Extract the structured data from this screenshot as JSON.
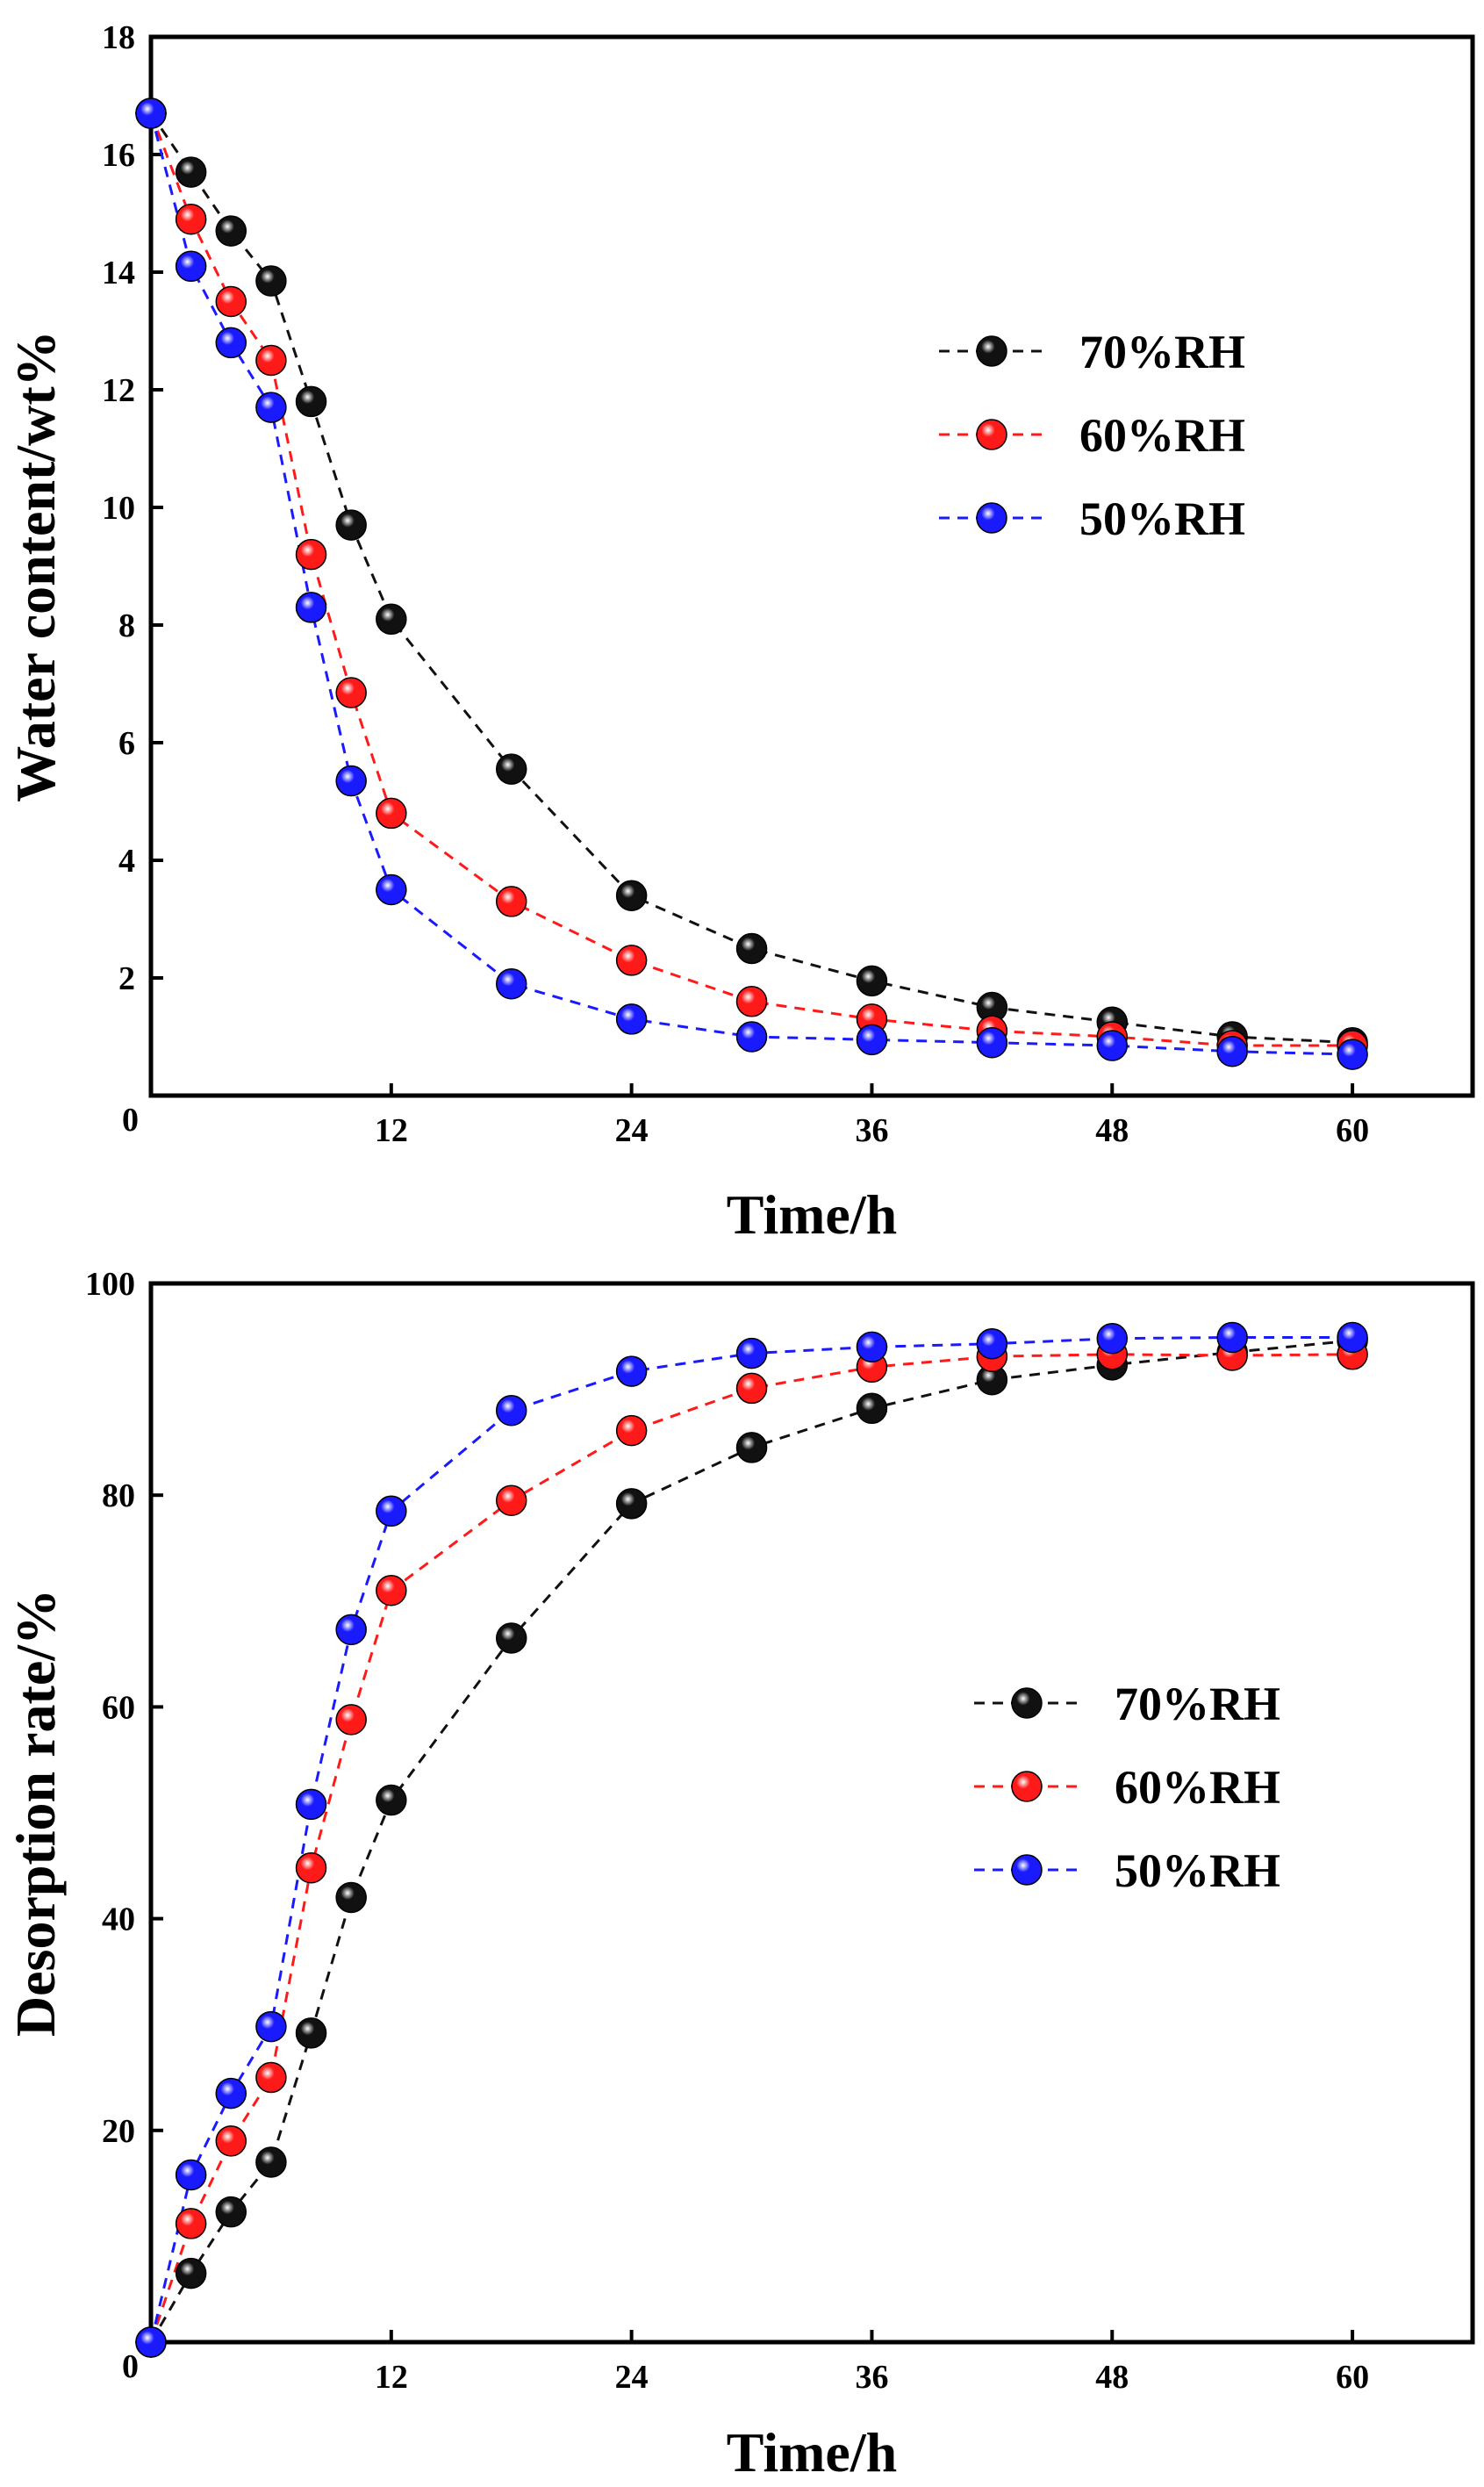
{
  "figure": {
    "description_free": true
  },
  "chart_data": [
    {
      "type": "line",
      "id": "top",
      "title": "",
      "xlabel": "Time/h",
      "ylabel": "Water content/wt%",
      "xlim": [
        0,
        66
      ],
      "ylim": [
        0,
        18
      ],
      "xticks": [
        12,
        24,
        36,
        48,
        60
      ],
      "xtick_labels": [
        "12",
        "24",
        "36",
        "48",
        "60"
      ],
      "yticks": [
        0,
        2,
        4,
        6,
        8,
        10,
        12,
        14,
        16,
        18
      ],
      "ytick_labels": [
        "0",
        "2",
        "4",
        "6",
        "8",
        "10",
        "12",
        "14",
        "16",
        "18"
      ],
      "x_origin_label": "0",
      "grid": false,
      "legend_position": "center-right",
      "series": [
        {
          "name": "70%RH",
          "color": "#111111",
          "x": [
            0,
            2,
            4,
            6,
            8,
            10,
            12,
            18,
            24,
            30,
            36,
            42,
            48,
            54,
            60
          ],
          "values": [
            16.7,
            15.7,
            14.7,
            13.85,
            11.8,
            9.7,
            8.1,
            5.55,
            3.4,
            2.5,
            1.95,
            1.5,
            1.25,
            1.0,
            0.9
          ]
        },
        {
          "name": "60%RH",
          "color": "#ff1a1a",
          "x": [
            0,
            2,
            4,
            6,
            8,
            10,
            12,
            18,
            24,
            30,
            36,
            42,
            48,
            54,
            60
          ],
          "values": [
            16.7,
            14.9,
            13.5,
            12.5,
            9.2,
            6.85,
            4.8,
            3.3,
            2.3,
            1.6,
            1.3,
            1.1,
            1.0,
            0.85,
            0.85
          ]
        },
        {
          "name": "50%RH",
          "color": "#1a1aff",
          "x": [
            0,
            2,
            4,
            6,
            8,
            10,
            12,
            18,
            24,
            30,
            36,
            42,
            48,
            54,
            60
          ],
          "values": [
            16.7,
            14.1,
            12.8,
            11.7,
            8.3,
            5.35,
            3.5,
            1.9,
            1.3,
            1.0,
            0.95,
            0.9,
            0.85,
            0.75,
            0.7
          ]
        }
      ]
    },
    {
      "type": "line",
      "id": "bottom",
      "title": "",
      "xlabel": "Time/h",
      "ylabel": "Desorption rate/%",
      "xlim": [
        0,
        66
      ],
      "ylim": [
        0,
        100
      ],
      "xticks": [
        12,
        24,
        36,
        48,
        60
      ],
      "xtick_labels": [
        "12",
        "24",
        "36",
        "48",
        "60"
      ],
      "yticks": [
        0,
        20,
        40,
        60,
        80,
        100
      ],
      "ytick_labels": [
        "0",
        "20",
        "40",
        "60",
        "80",
        "100"
      ],
      "x_origin_label": "0",
      "grid": false,
      "legend_position": "center-right",
      "series": [
        {
          "name": "70%RH",
          "color": "#111111",
          "x": [
            0,
            2,
            4,
            6,
            8,
            10,
            12,
            18,
            24,
            30,
            36,
            42,
            48,
            54,
            60
          ],
          "values": [
            0,
            6.5,
            12.3,
            17,
            29.2,
            42,
            51.2,
            66.5,
            79.2,
            84.5,
            88.2,
            90.9,
            92.3,
            93.5,
            94.6
          ]
        },
        {
          "name": "60%RH",
          "color": "#ff1a1a",
          "x": [
            0,
            2,
            4,
            6,
            8,
            10,
            12,
            18,
            24,
            30,
            36,
            42,
            48,
            54,
            60
          ],
          "values": [
            0,
            11.2,
            19,
            25,
            44.8,
            58.8,
            71.0,
            79.5,
            86.1,
            90.1,
            92.1,
            93.1,
            93.3,
            93.2,
            93.3
          ]
        },
        {
          "name": "50%RH",
          "color": "#1a1aff",
          "x": [
            0,
            2,
            4,
            6,
            8,
            10,
            12,
            18,
            24,
            30,
            36,
            42,
            48,
            54,
            60
          ],
          "values": [
            0,
            15.8,
            23.5,
            29.8,
            50.8,
            67.3,
            78.5,
            88.0,
            91.7,
            93.4,
            94.0,
            94.3,
            94.8,
            94.9,
            94.9
          ]
        }
      ]
    }
  ]
}
